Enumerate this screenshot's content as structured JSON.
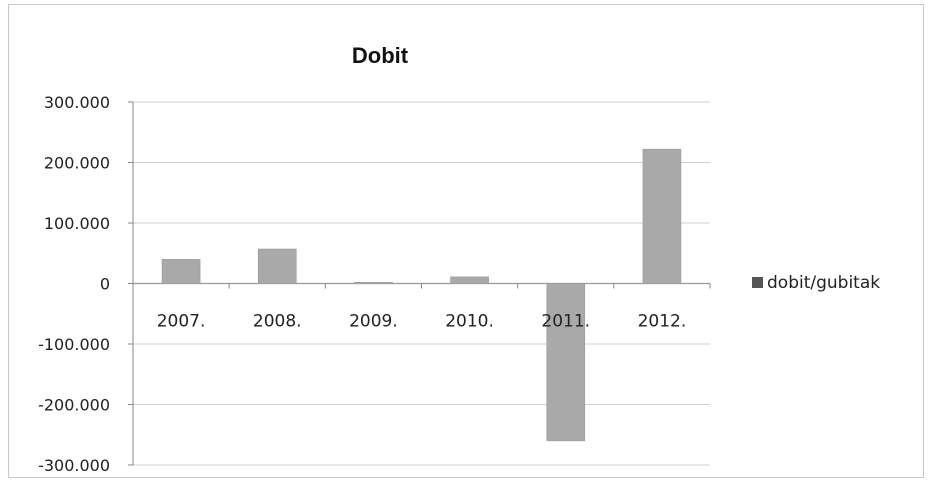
{
  "chart_data": {
    "type": "bar",
    "title": "Dobit",
    "categories": [
      "2007.",
      "2008.",
      "2009.",
      "2010.",
      "2011.",
      "2012."
    ],
    "series": [
      {
        "name": "dobit/gubitak",
        "values": [
          40000,
          57000,
          2000,
          11000,
          -260000,
          222000
        ],
        "color": "#a9a9a9"
      }
    ],
    "ylim": [
      -300000,
      300000
    ],
    "yticks": [
      300000,
      200000,
      100000,
      0,
      -100000,
      -200000,
      -300000
    ],
    "ytick_labels": [
      "300.000",
      "200.000",
      "100.000",
      "0",
      "-100.000",
      "-200.000",
      "-300.000"
    ],
    "xlabel": "",
    "ylabel": "",
    "grid": true,
    "legend_position": "right"
  }
}
